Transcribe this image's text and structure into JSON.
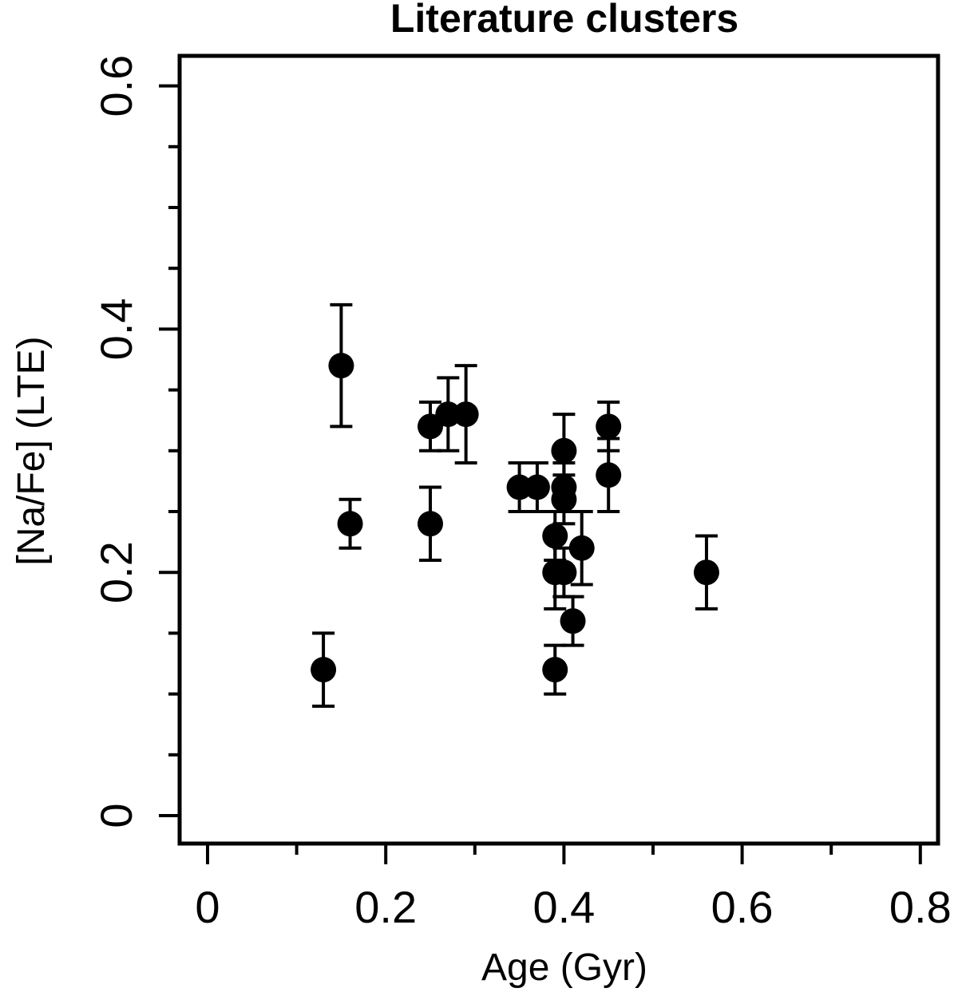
{
  "chart_data": {
    "type": "scatter",
    "title": "Literature clusters",
    "xlabel": "Age (Gyr)",
    "ylabel": "[Na/Fe] (LTE)",
    "xlim": [
      -0.03,
      0.82
    ],
    "ylim": [
      -0.02,
      0.625
    ],
    "xticks": [
      0,
      0.2,
      0.4,
      0.6,
      0.8
    ],
    "xtick_labels": [
      "0",
      "0.2",
      "0.4",
      "0.6",
      "0.8"
    ],
    "xminor": [
      0.1,
      0.3,
      0.5,
      0.7
    ],
    "yticks": [
      0,
      0.2,
      0.4,
      0.6
    ],
    "ytick_labels": [
      "0",
      "0.2",
      "0.4",
      "0.6"
    ],
    "yminor": [
      0.05,
      0.1,
      0.15,
      0.25,
      0.3,
      0.35,
      0.45,
      0.5,
      0.55
    ],
    "grid": false,
    "points": [
      {
        "x": 0.13,
        "y": 0.12,
        "err": 0.03
      },
      {
        "x": 0.15,
        "y": 0.37,
        "err": 0.05
      },
      {
        "x": 0.16,
        "y": 0.24,
        "err": 0.02
      },
      {
        "x": 0.25,
        "y": 0.32,
        "err": 0.02
      },
      {
        "x": 0.25,
        "y": 0.24,
        "err": 0.03
      },
      {
        "x": 0.27,
        "y": 0.33,
        "err": 0.03
      },
      {
        "x": 0.29,
        "y": 0.33,
        "err": 0.04
      },
      {
        "x": 0.35,
        "y": 0.27,
        "err": 0.02
      },
      {
        "x": 0.37,
        "y": 0.27,
        "err": 0.02
      },
      {
        "x": 0.39,
        "y": 0.23,
        "err": 0.02
      },
      {
        "x": 0.39,
        "y": 0.2,
        "err": 0.03
      },
      {
        "x": 0.39,
        "y": 0.12,
        "err": 0.02
      },
      {
        "x": 0.4,
        "y": 0.3,
        "err": 0.03
      },
      {
        "x": 0.4,
        "y": 0.27,
        "err": 0.02
      },
      {
        "x": 0.4,
        "y": 0.26,
        "err": 0.02
      },
      {
        "x": 0.4,
        "y": 0.2,
        "err": 0.02
      },
      {
        "x": 0.41,
        "y": 0.16,
        "err": 0.02
      },
      {
        "x": 0.42,
        "y": 0.22,
        "err": 0.03
      },
      {
        "x": 0.45,
        "y": 0.32,
        "err": 0.02
      },
      {
        "x": 0.45,
        "y": 0.28,
        "err": 0.03
      },
      {
        "x": 0.56,
        "y": 0.2,
        "err": 0.03
      }
    ]
  }
}
